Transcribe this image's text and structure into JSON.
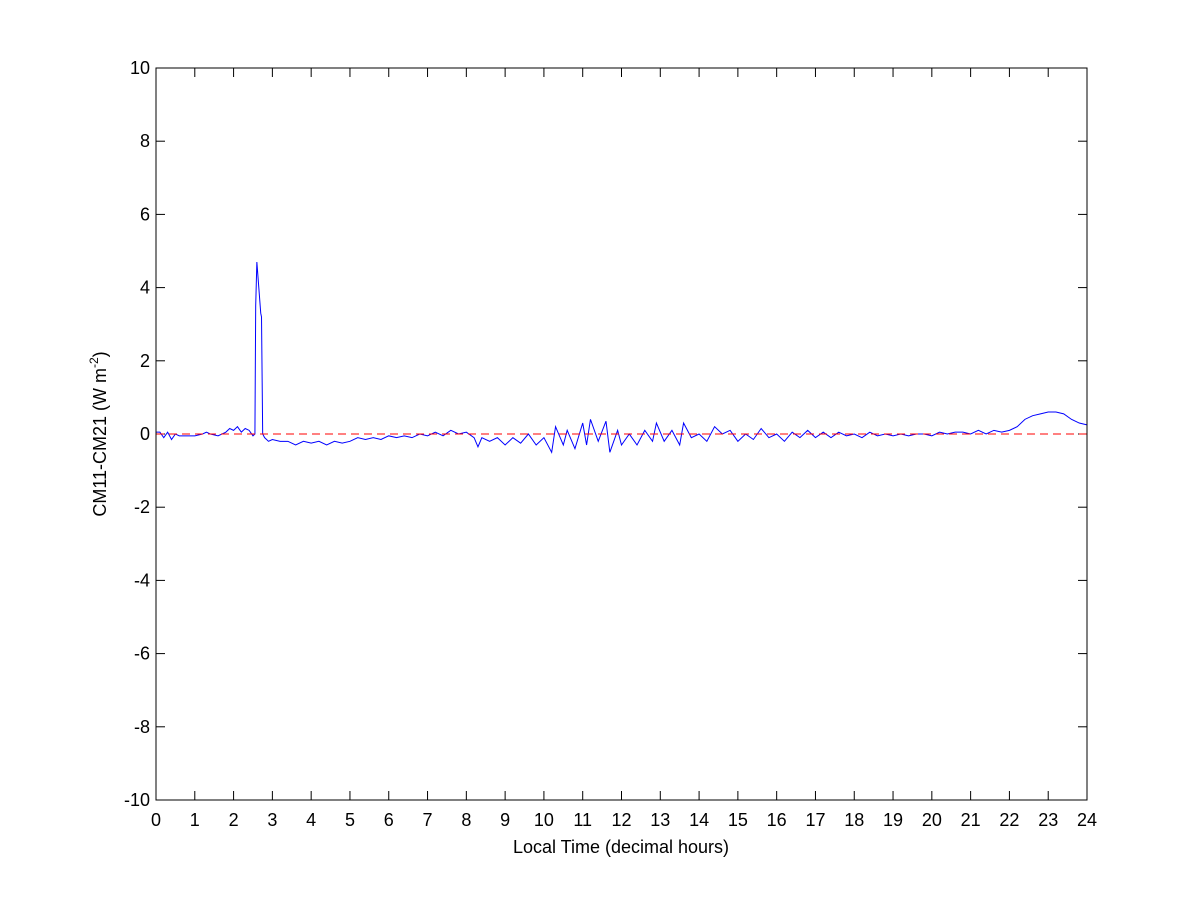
{
  "chart_data": {
    "type": "line",
    "xlabel": "Local Time (decimal hours)",
    "ylabel": [
      "CM11-CM21 (W m",
      "-2",
      ")"
    ],
    "xlim": [
      0,
      24
    ],
    "ylim": [
      -10,
      10
    ],
    "xticks": [
      0,
      1,
      2,
      3,
      4,
      5,
      6,
      7,
      8,
      9,
      10,
      11,
      12,
      13,
      14,
      15,
      16,
      17,
      18,
      19,
      20,
      21,
      22,
      23,
      24
    ],
    "yticks": [
      -10,
      -8,
      -6,
      -4,
      -2,
      0,
      2,
      4,
      6,
      8,
      10
    ],
    "grid": false,
    "series": [
      {
        "color": "#0000ff",
        "linestyle": "solid",
        "x": [
          0,
          0.1,
          0.2,
          0.3,
          0.4,
          0.5,
          0.6,
          0.7,
          0.8,
          0.9,
          1.0,
          1.2,
          1.3,
          1.4,
          1.6,
          1.8,
          1.9,
          2.0,
          2.1,
          2.2,
          2.3,
          2.4,
          2.5,
          2.55,
          2.57,
          2.6,
          2.65,
          2.7,
          2.72,
          2.75,
          2.8,
          2.9,
          3.0,
          3.2,
          3.4,
          3.6,
          3.8,
          4.0,
          4.2,
          4.4,
          4.6,
          4.8,
          5.0,
          5.2,
          5.4,
          5.6,
          5.8,
          6.0,
          6.2,
          6.4,
          6.6,
          6.8,
          7.0,
          7.2,
          7.4,
          7.6,
          7.8,
          8.0,
          8.2,
          8.3,
          8.4,
          8.6,
          8.8,
          9.0,
          9.2,
          9.4,
          9.6,
          9.8,
          10.0,
          10.2,
          10.3,
          10.5,
          10.6,
          10.8,
          11.0,
          11.1,
          11.2,
          11.4,
          11.6,
          11.7,
          11.9,
          12.0,
          12.2,
          12.4,
          12.6,
          12.8,
          12.9,
          13.1,
          13.3,
          13.5,
          13.6,
          13.8,
          14.0,
          14.2,
          14.4,
          14.6,
          14.8,
          15.0,
          15.2,
          15.4,
          15.6,
          15.8,
          16.0,
          16.2,
          16.4,
          16.6,
          16.8,
          17.0,
          17.2,
          17.4,
          17.6,
          17.8,
          18.0,
          18.2,
          18.4,
          18.6,
          18.8,
          19.0,
          19.2,
          19.4,
          19.6,
          19.8,
          20.0,
          20.2,
          20.4,
          20.6,
          20.8,
          21.0,
          21.2,
          21.4,
          21.6,
          21.8,
          22.0,
          22.2,
          22.4,
          22.6,
          22.8,
          23.0,
          23.2,
          23.4,
          23.6,
          23.8,
          24.0
        ],
        "values": [
          0.05,
          0.05,
          -0.1,
          0.05,
          -0.15,
          0.0,
          -0.05,
          -0.05,
          -0.05,
          -0.05,
          -0.05,
          0.0,
          0.05,
          0.0,
          -0.05,
          0.05,
          0.15,
          0.1,
          0.2,
          0.05,
          0.15,
          0.1,
          -0.05,
          0.0,
          3.5,
          4.7,
          4.0,
          3.3,
          3.2,
          0.0,
          -0.1,
          -0.2,
          -0.15,
          -0.2,
          -0.2,
          -0.3,
          -0.2,
          -0.25,
          -0.2,
          -0.3,
          -0.2,
          -0.25,
          -0.2,
          -0.1,
          -0.15,
          -0.1,
          -0.15,
          -0.05,
          -0.1,
          -0.05,
          -0.1,
          0.0,
          -0.05,
          0.05,
          -0.05,
          0.1,
          0.0,
          0.05,
          -0.1,
          -0.35,
          -0.1,
          -0.2,
          -0.1,
          -0.3,
          -0.1,
          -0.25,
          0.0,
          -0.3,
          -0.1,
          -0.5,
          0.2,
          -0.3,
          0.1,
          -0.4,
          0.3,
          -0.3,
          0.4,
          -0.2,
          0.35,
          -0.5,
          0.1,
          -0.3,
          0.0,
          -0.3,
          0.1,
          -0.2,
          0.3,
          -0.2,
          0.1,
          -0.3,
          0.3,
          -0.1,
          0.0,
          -0.2,
          0.2,
          0.0,
          0.1,
          -0.2,
          0.0,
          -0.15,
          0.15,
          -0.1,
          0.0,
          -0.2,
          0.05,
          -0.1,
          0.1,
          -0.1,
          0.05,
          -0.1,
          0.05,
          -0.05,
          0.0,
          -0.1,
          0.05,
          -0.05,
          0.0,
          -0.05,
          0.0,
          -0.05,
          0.0,
          0.0,
          -0.05,
          0.05,
          0.0,
          0.05,
          0.05,
          0.0,
          0.1,
          0.0,
          0.1,
          0.05,
          0.1,
          0.2,
          0.4,
          0.5,
          0.55,
          0.6,
          0.6,
          0.55,
          0.4,
          0.3,
          0.25
        ]
      },
      {
        "color": "#ff0000",
        "linestyle": "dashed",
        "x": [
          0,
          24
        ],
        "values": [
          0,
          0
        ]
      }
    ]
  }
}
